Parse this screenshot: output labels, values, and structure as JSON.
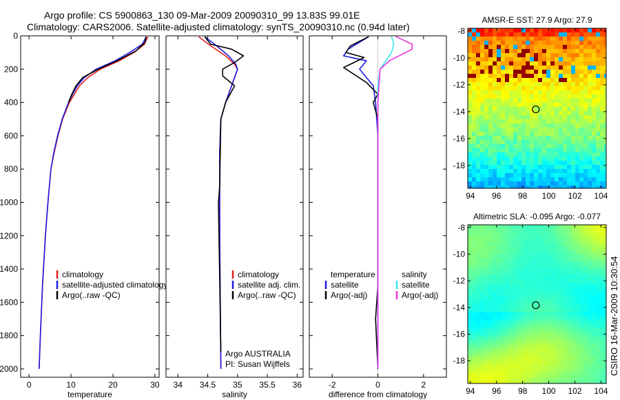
{
  "header": {
    "line1": "Argo profile: CS 5900863_130 09-Mar-2009 20090310_99 13.83S 99.01E",
    "line2": "Climatology: CARS2006. Satellite-adjusted climatology: synTS_20090310.nc (0.94d later)"
  },
  "side_label": "CSIRO 16-Mar-2009 10:30:54",
  "colors": {
    "climatology": "#e21b1b",
    "satellite": "#1a1ae0",
    "argo": "#000000",
    "sat_salinity": "#33e6f0",
    "argo_adj_salinity": "#e833e0",
    "zero_line": "#666666"
  },
  "chart_data": [
    {
      "type": "line",
      "panel": "temperature",
      "xlabel": "temperature",
      "ylabel": "",
      "xlim": [
        -2,
        31
      ],
      "ylim": [
        0,
        2050
      ],
      "y_reversed": true,
      "xticks": [
        0,
        10,
        20,
        30
      ],
      "yticks": [
        0,
        200,
        400,
        600,
        800,
        1000,
        1200,
        1400,
        1600,
        1800,
        2000
      ],
      "legend": [
        "climatology",
        "satellite-adjusted climatology",
        "Argo(..raw -QC)"
      ],
      "series": [
        {
          "name": "climatology",
          "color": "climatology",
          "x": [
            28.3,
            27.5,
            25.0,
            21.5,
            17.0,
            14.0,
            12.0,
            10.8,
            9.6,
            8.0,
            6.9,
            6.0,
            5.2,
            4.5,
            3.9,
            3.2,
            2.7,
            2.4
          ],
          "y": [
            5,
            50,
            100,
            150,
            200,
            250,
            300,
            350,
            400,
            500,
            600,
            700,
            800,
            1000,
            1200,
            1500,
            1800,
            2000
          ]
        },
        {
          "name": "satellite-adjusted climatology",
          "color": "satellite",
          "x": [
            27.9,
            27.0,
            24.0,
            20.5,
            16.0,
            13.2,
            11.5,
            10.4,
            9.4,
            7.9,
            6.8,
            5.9,
            5.2,
            4.5,
            3.9,
            3.2,
            2.7,
            2.4
          ],
          "y": [
            5,
            50,
            100,
            150,
            200,
            250,
            300,
            350,
            400,
            500,
            600,
            700,
            800,
            1000,
            1200,
            1500,
            1800,
            2000
          ]
        },
        {
          "name": "Argo(..raw -QC)",
          "color": "argo",
          "x": [
            27.9,
            27.6,
            25.5,
            21.0,
            16.5,
            12.8,
            11.2,
            10.2,
            9.4
          ],
          "y": [
            5,
            40,
            90,
            150,
            200,
            250,
            300,
            350,
            400
          ]
        }
      ]
    },
    {
      "type": "line",
      "panel": "salinity",
      "xlabel": "salinity",
      "ylabel": "",
      "xlim": [
        33.8,
        36.1
      ],
      "ylim": [
        0,
        2050
      ],
      "y_reversed": true,
      "xticks": [
        34,
        34.5,
        35,
        35.5,
        36
      ],
      "legend": [
        "climatology",
        "satellite adj. clim.",
        "Argo(..raw -QC)"
      ],
      "annotation": [
        "Argo AUSTRALIA",
        "PI: Susan Wijffels"
      ],
      "series": [
        {
          "name": "climatology",
          "color": "climatology",
          "x": [
            34.35,
            34.55,
            34.8,
            34.95,
            35.0,
            34.9,
            34.8,
            34.72,
            34.7,
            34.7,
            34.72
          ],
          "y": [
            5,
            60,
            120,
            170,
            200,
            300,
            400,
            500,
            700,
            1200,
            2000
          ]
        },
        {
          "name": "satellite adj. clim.",
          "color": "satellite",
          "x": [
            34.45,
            34.65,
            34.85,
            34.97,
            35.0,
            34.9,
            34.8,
            34.72,
            34.7,
            34.7,
            34.72
          ],
          "y": [
            5,
            60,
            120,
            170,
            200,
            300,
            400,
            500,
            700,
            1200,
            2000
          ]
        },
        {
          "name": "Argo(..raw -QC)",
          "color": "argo",
          "x": [
            34.45,
            34.55,
            34.9,
            35.1,
            34.95,
            34.75,
            34.75,
            34.95,
            34.8,
            34.72,
            34.7,
            34.68,
            34.72
          ],
          "y": [
            5,
            50,
            80,
            120,
            160,
            200,
            240,
            300,
            400,
            500,
            900,
            1000,
            1900
          ]
        }
      ]
    },
    {
      "type": "line",
      "panel": "difference",
      "xlabel": "difference from climatology",
      "ylabel": "",
      "xlim": [
        -3,
        3
      ],
      "ylim": [
        0,
        2050
      ],
      "y_reversed": true,
      "xticks": [
        -2,
        0,
        2
      ],
      "legend_groups": [
        {
          "title": "temperature",
          "items": [
            "satellite",
            "Argo(-adj)"
          ]
        },
        {
          "title": "salinity",
          "items": [
            "satellite",
            "Argo(-adj)"
          ]
        }
      ],
      "series": [
        {
          "name": "temperature satellite",
          "color": "satellite",
          "x": [
            -0.4,
            -1.3,
            -1.5,
            -0.5,
            -0.8,
            -0.5,
            -0.2,
            -0.1,
            0.0,
            0.0
          ],
          "y": [
            5,
            80,
            120,
            150,
            200,
            250,
            300,
            400,
            600,
            2000
          ]
        },
        {
          "name": "temperature Argo(-adj)",
          "color": "argo",
          "x": [
            -0.4,
            -1.2,
            -1.4,
            -0.6,
            -1.5,
            -0.5,
            0.0,
            -0.2,
            0.0,
            0.0,
            -0.1,
            0.0
          ],
          "y": [
            5,
            60,
            100,
            130,
            190,
            280,
            350,
            400,
            500,
            1500,
            1700,
            2000
          ]
        },
        {
          "name": "salinity satellite",
          "color": "sat_salinity",
          "x": [
            0.6,
            0.7,
            0.6,
            0.1,
            0.0,
            0.0,
            0.0,
            0.0
          ],
          "y": [
            5,
            50,
            100,
            200,
            300,
            600,
            1200,
            2000
          ]
        },
        {
          "name": "salinity Argo(-adj)",
          "color": "argo_adj_salinity",
          "x": [
            0.8,
            1.5,
            1.5,
            0.5,
            0.1,
            0.0,
            0.0
          ],
          "y": [
            5,
            50,
            80,
            150,
            200,
            400,
            2000
          ]
        }
      ]
    },
    {
      "type": "heatmap",
      "panel": "sst_map",
      "title": "AMSR-E SST: 27.9 Argo: 27.9",
      "xlim": [
        93.8,
        104.4
      ],
      "ylim": [
        -19.7,
        -7.8
      ],
      "xticks": [
        94,
        96,
        98,
        100,
        102,
        104
      ],
      "yticks": [
        -8,
        -10,
        -12,
        -14,
        -16,
        -18
      ],
      "marker": {
        "lon": 99.01,
        "lat": -13.83
      }
    },
    {
      "type": "heatmap",
      "panel": "sla_map",
      "title": "Altimetric SLA: -0.095 Argo: -0.077",
      "xlim": [
        93.8,
        104.4
      ],
      "ylim": [
        -19.7,
        -7.8
      ],
      "xticks": [
        94,
        96,
        98,
        100,
        102,
        104
      ],
      "yticks": [
        -8,
        -10,
        -12,
        -14,
        -16,
        -18
      ],
      "marker": {
        "lon": 99.01,
        "lat": -13.83
      }
    }
  ]
}
